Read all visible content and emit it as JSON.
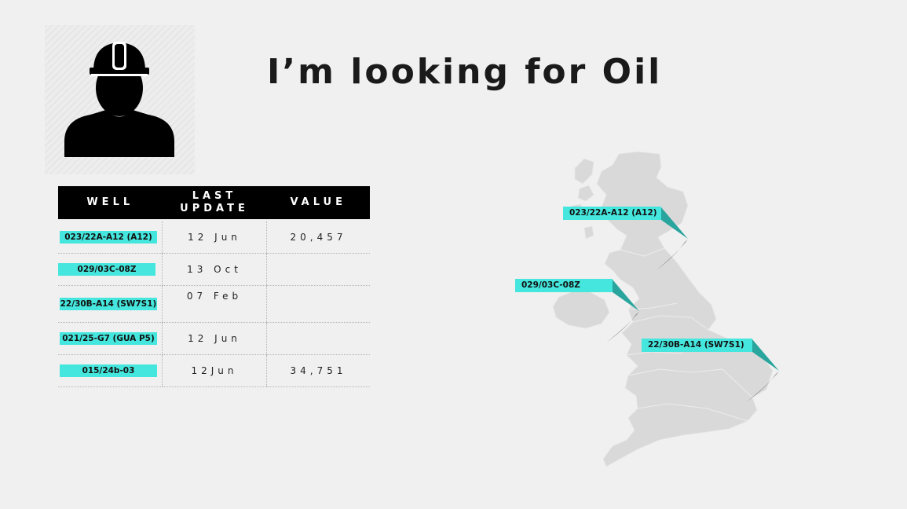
{
  "page": {
    "title": "I’m looking for Oil"
  },
  "avatar": {
    "icon": "worker-hardhat-icon"
  },
  "table": {
    "headers": {
      "well": "WELL",
      "last_update_line1": "LAST",
      "last_update_line2": "UPDATE",
      "value": "VALUE"
    },
    "rows": [
      {
        "well": "023/22A-A12 (A12)",
        "last_update": "12 Jun",
        "value": "20,457"
      },
      {
        "well": "029/03C-08Z",
        "last_update": "13 Oct",
        "value": ""
      },
      {
        "well": "22/30B-A14 (SW7S1)",
        "last_update": "07 Feb",
        "value": ""
      },
      {
        "well": "021/25-G7 (GUA P5)",
        "last_update": "12 Jun",
        "value": ""
      },
      {
        "well": "015/24b-03",
        "last_update": "12Jun",
        "value": "34,751"
      }
    ]
  },
  "map": {
    "icon": "uk-map-icon",
    "pins": [
      {
        "label": "023/22A-A12 (A12)"
      },
      {
        "label": "029/03C-08Z"
      },
      {
        "label": "22/30B-A14 (SW7S1)"
      }
    ]
  },
  "colors": {
    "accent": "#45e6dd",
    "accent_dark": "#2aa59e",
    "header_bg": "#000000",
    "map_fill": "#d9d9d9"
  }
}
